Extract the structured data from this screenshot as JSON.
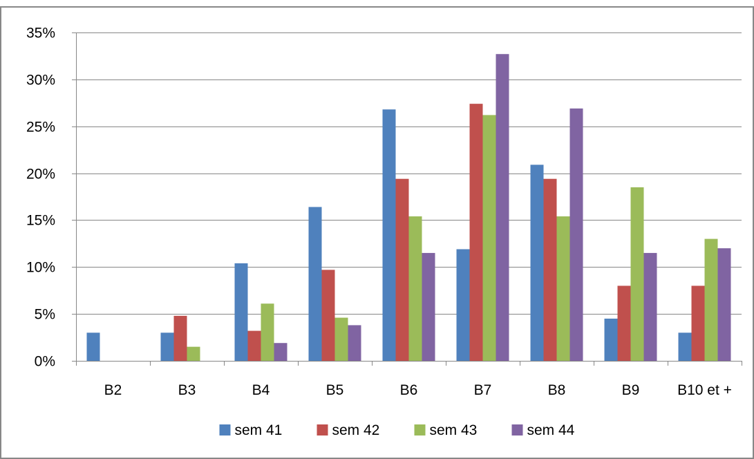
{
  "chart_data": {
    "type": "bar",
    "title": "",
    "xlabel": "",
    "ylabel": "",
    "categories": [
      "B2",
      "B3",
      "B4",
      "B5",
      "B6",
      "B7",
      "B8",
      "B9",
      "B10 et +"
    ],
    "series": [
      {
        "name": "sem 41",
        "color": "#4F81BD",
        "values": [
          3.0,
          3.0,
          10.4,
          16.4,
          26.8,
          11.9,
          20.9,
          4.5,
          3.0
        ]
      },
      {
        "name": "sem 42",
        "color": "#C0504D",
        "values": [
          0,
          4.8,
          3.2,
          9.7,
          19.4,
          27.4,
          19.4,
          8.0,
          8.0
        ]
      },
      {
        "name": "sem 43",
        "color": "#9BBB59",
        "values": [
          0,
          1.5,
          6.1,
          4.6,
          15.4,
          26.2,
          15.4,
          18.5,
          13.0
        ]
      },
      {
        "name": "sem 44",
        "color": "#8064A2",
        "values": [
          0,
          0,
          1.9,
          3.8,
          11.5,
          32.7,
          26.9,
          11.5,
          12.0
        ]
      }
    ],
    "ylim": [
      0,
      35
    ],
    "yticks": [
      "0%",
      "5%",
      "10%",
      "15%",
      "20%",
      "25%",
      "30%",
      "35%"
    ],
    "ytick_values": [
      0,
      5,
      10,
      15,
      20,
      25,
      30,
      35
    ],
    "y_unit": "percent",
    "grid": "horizontal",
    "legend_position": "bottom"
  },
  "style": {
    "gridline_color": "#868686",
    "frame_color": "#878787"
  }
}
